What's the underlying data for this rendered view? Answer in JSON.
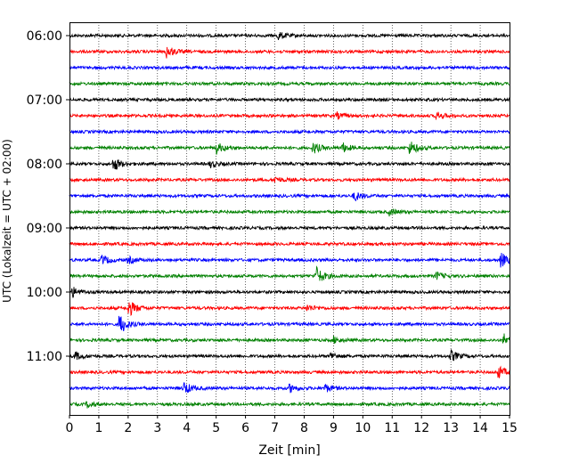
{
  "chart_data": {
    "type": "line",
    "subtype": "helicorder",
    "xlabel": "Zeit  [min]",
    "ylabel": "UTC (Lokalzeit = UTC + 02:00)",
    "xlim": [
      0,
      15
    ],
    "x_ticks": [
      "0",
      "1",
      "2",
      "3",
      "4",
      "5",
      "6",
      "7",
      "8",
      "9",
      "10",
      "11",
      "12",
      "13",
      "14",
      "15"
    ],
    "time_ticks": [
      {
        "label": "06:00",
        "row": 0
      },
      {
        "label": "07:00",
        "row": 4
      },
      {
        "label": "08:00",
        "row": 8
      },
      {
        "label": "09:00",
        "row": 12
      },
      {
        "label": "10:00",
        "row": 16
      },
      {
        "label": "11:00",
        "row": 20
      }
    ],
    "row_count": 24,
    "colors": [
      "#000000",
      "#ff0000",
      "#0000ff",
      "#008000"
    ],
    "grid": "vertical dotted at every minute",
    "events": [
      {
        "row": 0,
        "minute": 7.1,
        "amp": 0.5
      },
      {
        "row": 1,
        "minute": 3.3,
        "amp": 0.8
      },
      {
        "row": 5,
        "minute": 9.1,
        "amp": 0.4
      },
      {
        "row": 5,
        "minute": 12.5,
        "amp": 0.5
      },
      {
        "row": 7,
        "minute": 5.0,
        "amp": 0.7
      },
      {
        "row": 7,
        "minute": 8.3,
        "amp": 0.7
      },
      {
        "row": 7,
        "minute": 9.3,
        "amp": 0.6
      },
      {
        "row": 7,
        "minute": 11.6,
        "amp": 0.9
      },
      {
        "row": 8,
        "minute": 1.5,
        "amp": 0.9
      },
      {
        "row": 8,
        "minute": 4.8,
        "amp": 0.4
      },
      {
        "row": 9,
        "minute": 7.0,
        "amp": 0.4
      },
      {
        "row": 10,
        "minute": 9.7,
        "amp": 0.6
      },
      {
        "row": 11,
        "minute": 10.9,
        "amp": 0.4
      },
      {
        "row": 14,
        "minute": 1.1,
        "amp": 0.6
      },
      {
        "row": 14,
        "minute": 2.0,
        "amp": 0.4
      },
      {
        "row": 14,
        "minute": 14.7,
        "amp": 0.9
      },
      {
        "row": 15,
        "minute": 8.4,
        "amp": 1.2
      },
      {
        "row": 15,
        "minute": 12.5,
        "amp": 0.5
      },
      {
        "row": 16,
        "minute": 0.1,
        "amp": 0.6
      },
      {
        "row": 17,
        "minute": 2.0,
        "amp": 1.1
      },
      {
        "row": 17,
        "minute": 8.1,
        "amp": 0.4
      },
      {
        "row": 18,
        "minute": 1.7,
        "amp": 1.4
      },
      {
        "row": 19,
        "minute": 9.0,
        "amp": 0.4
      },
      {
        "row": 19,
        "minute": 14.8,
        "amp": 0.8
      },
      {
        "row": 20,
        "minute": 0.2,
        "amp": 0.5
      },
      {
        "row": 20,
        "minute": 8.9,
        "amp": 0.4
      },
      {
        "row": 20,
        "minute": 13.0,
        "amp": 0.7
      },
      {
        "row": 21,
        "minute": 14.6,
        "amp": 0.8
      },
      {
        "row": 22,
        "minute": 3.9,
        "amp": 0.8
      },
      {
        "row": 22,
        "minute": 7.5,
        "amp": 0.5
      },
      {
        "row": 22,
        "minute": 8.7,
        "amp": 0.5
      },
      {
        "row": 23,
        "minute": 0.6,
        "amp": 0.4
      }
    ]
  }
}
